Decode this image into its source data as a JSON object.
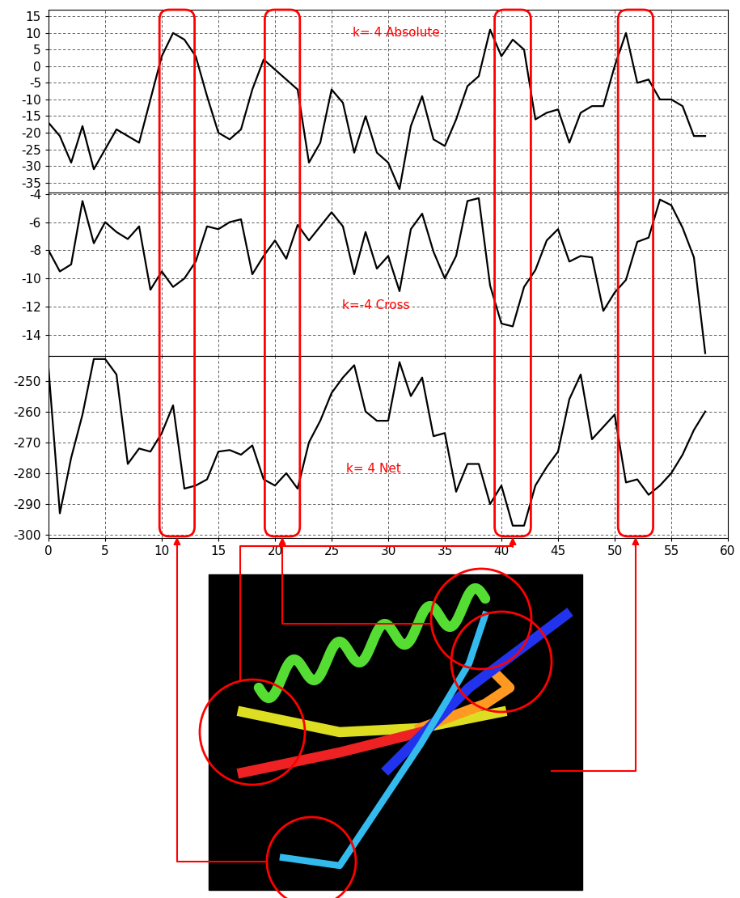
{
  "chart_data": [
    {
      "type": "line",
      "annotation": "k= 4 Absolute",
      "color": "#000000",
      "line_style": "solid",
      "grid": true,
      "tick_labels": "y",
      "x": [
        0,
        1,
        2,
        3,
        4,
        5,
        6,
        7,
        8,
        9,
        10,
        11,
        12,
        13,
        14,
        15,
        16,
        17,
        18,
        19,
        20,
        21,
        22,
        23,
        24,
        25,
        26,
        27,
        28,
        29,
        30,
        31,
        32,
        33,
        34,
        35,
        36,
        37,
        38,
        39,
        40,
        41,
        42,
        43,
        44,
        45,
        46,
        47,
        48,
        49,
        50,
        51,
        52,
        53,
        54,
        55,
        56,
        57,
        58
      ],
      "values": [
        -17,
        -21,
        -29,
        -18,
        -31,
        -25,
        -19,
        -21,
        -23,
        -10,
        3,
        10,
        8,
        3,
        -9,
        -20,
        -22,
        -19,
        -7,
        2,
        -1,
        -4,
        -7,
        -29,
        -23,
        -7,
        -11,
        -26,
        -15,
        -26,
        -29,
        -37,
        -18,
        -9,
        -22,
        -24,
        -16,
        -6,
        -3,
        11,
        3,
        8,
        5,
        -16,
        -14,
        -13,
        -23,
        -14,
        -12,
        -12,
        0,
        10,
        -5,
        -4,
        -10,
        -10,
        -12,
        -21,
        -21
      ],
      "xlim": [
        0,
        60
      ],
      "xticks": [
        0,
        5,
        10,
        15,
        20,
        25,
        30,
        35,
        40,
        45,
        50,
        55,
        60
      ],
      "ylim": [
        -38,
        17
      ],
      "yticks": [
        15,
        10,
        5,
        0,
        -5,
        -10,
        -15,
        -20,
        -25,
        -30,
        -35
      ]
    },
    {
      "type": "line",
      "annotation": "k=-4 Cross",
      "color": "#000000",
      "line_style": "solid",
      "grid": true,
      "tick_labels": "y",
      "x": [
        0,
        1,
        2,
        3,
        4,
        5,
        6,
        7,
        8,
        9,
        10,
        11,
        12,
        13,
        14,
        15,
        16,
        17,
        18,
        19,
        20,
        21,
        22,
        23,
        24,
        25,
        26,
        27,
        28,
        29,
        30,
        31,
        32,
        33,
        34,
        35,
        36,
        37,
        38,
        39,
        40,
        41,
        42,
        43,
        44,
        45,
        46,
        47,
        48,
        49,
        50,
        51,
        52,
        53,
        54,
        55,
        56,
        57,
        58
      ],
      "values": [
        -8,
        -9.5,
        -9,
        -4.5,
        -7.5,
        -6,
        -6.7,
        -7.2,
        -6.3,
        -10.8,
        -9.5,
        -10.6,
        -10,
        -8.8,
        -6.3,
        -6.5,
        -6,
        -5.8,
        -9.7,
        -8.4,
        -7.3,
        -8.6,
        -6.2,
        -7.3,
        -6.3,
        -5.3,
        -6.3,
        -9.7,
        -6.7,
        -9.3,
        -8.4,
        -10.9,
        -6.5,
        -5.4,
        -8.1,
        -10,
        -8.4,
        -4.5,
        -4.3,
        -10.5,
        -13.2,
        -13.4,
        -10.6,
        -9.4,
        -7.3,
        -6.5,
        -8.8,
        -8.4,
        -8.5,
        -12.3,
        -11,
        -10.1,
        -7.4,
        -7.1,
        -4.4,
        -4.8,
        -6.4,
        -8.5,
        -15.3
      ],
      "xlim": [
        0,
        60
      ],
      "xticks": [
        0,
        5,
        10,
        15,
        20,
        25,
        30,
        35,
        40,
        45,
        50,
        55,
        60
      ],
      "ylim": [
        -15.5,
        -3.9
      ],
      "yticks": [
        -4,
        -6,
        -8,
        -10,
        -12,
        -14
      ]
    },
    {
      "type": "line",
      "annotation": "k= 4 Net",
      "color": "#000000",
      "line_style": "solid",
      "grid": true,
      "x": [
        0,
        1,
        2,
        3,
        4,
        5,
        6,
        7,
        8,
        9,
        10,
        11,
        12,
        13,
        14,
        15,
        16,
        17,
        18,
        19,
        20,
        21,
        22,
        23,
        24,
        25,
        26,
        27,
        28,
        29,
        30,
        31,
        32,
        33,
        34,
        35,
        36,
        37,
        38,
        39,
        40,
        41,
        42,
        43,
        44,
        45,
        46,
        47,
        48,
        49,
        50,
        51,
        52,
        53,
        54,
        55,
        56,
        57,
        58
      ],
      "values": [
        -246,
        -293,
        -275,
        -261,
        -243,
        -243,
        -248,
        -277,
        -272,
        -273,
        -267,
        -258,
        -285,
        -284,
        -282,
        -273,
        -272.5,
        -274,
        -271,
        -282,
        -284,
        -280,
        -285,
        -270,
        -263,
        -254,
        -249,
        -245,
        -260,
        -263,
        -263,
        -244,
        -255,
        -249,
        -268,
        -267,
        -286,
        -277,
        -277,
        -290,
        -284,
        -297,
        -297,
        -284,
        -278,
        -273,
        -256,
        -248,
        -269,
        -265,
        -261,
        -283,
        -282,
        -287,
        -284,
        -280,
        -274,
        -266,
        -260
      ],
      "xlim": [
        0,
        60
      ],
      "xticks": [
        0,
        5,
        10,
        15,
        20,
        25,
        30,
        35,
        40,
        45,
        50,
        55,
        60
      ],
      "ylim": [
        -301,
        -242
      ],
      "yticks": [
        -250,
        -260,
        -270,
        -280,
        -290,
        -300
      ]
    }
  ],
  "highlight_ranges": [
    [
      9.8,
      12.9
    ],
    [
      19.1,
      22.2
    ],
    [
      39.4,
      42.6
    ],
    [
      50.3,
      53.4
    ]
  ]
}
